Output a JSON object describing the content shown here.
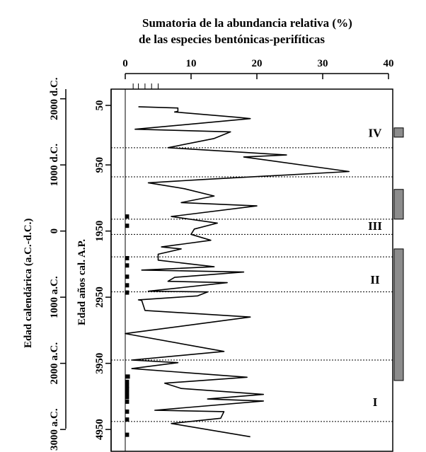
{
  "chart_data": {
    "type": "line",
    "orientation": "vertical-stratigraphic",
    "title_line1": "Sumatoria de la abundancia relativa (%)",
    "title_line2": "de las especies bentónicas-perifíticas",
    "xlim": [
      0,
      40
    ],
    "x_ticks": [
      "0",
      "10",
      "20",
      "30",
      "40"
    ],
    "y_axis_cal_bp": {
      "label": "Edad años cal. A.P.",
      "ticks": [
        "50",
        "950",
        "1950",
        "2950",
        "3950",
        "4950"
      ],
      "tick_values": [
        50,
        950,
        1950,
        2950,
        3950,
        4950
      ],
      "ylim": [
        50,
        4950
      ]
    },
    "y_axis_calendar": {
      "label": "Edad calendárica (a.C.-d.C.)",
      "ticks": [
        "2000 d.C.",
        "1000 d.C.",
        "0",
        "1000 a.C.",
        "2000 a.C.",
        "3000 a.C."
      ],
      "tick_values": [
        -50,
        950,
        1950,
        2950,
        3950,
        4950
      ]
    },
    "zones": [
      {
        "label": "IV",
        "label_age": 460
      },
      {
        "label": "III",
        "label_age": 1870
      },
      {
        "label": "II",
        "label_age": 2680
      },
      {
        "label": "I",
        "label_age": 4530
      }
    ],
    "zone_boundaries": [
      690,
      1130,
      1770,
      2000,
      2340,
      2870,
      3900,
      4830
    ],
    "series": [
      {
        "points": [
          [
            2,
            70
          ],
          [
            8,
            90
          ],
          [
            8,
            140
          ],
          [
            7.5,
            150
          ],
          [
            17,
            230
          ],
          [
            19,
            250
          ],
          [
            1.5,
            410
          ],
          [
            16,
            450
          ],
          [
            13.5,
            550
          ],
          [
            6.5,
            690
          ],
          [
            24.5,
            800
          ],
          [
            18,
            830
          ],
          [
            34,
            1050
          ],
          [
            12,
            1170
          ],
          [
            3.5,
            1220
          ],
          [
            9,
            1310
          ],
          [
            13.5,
            1420
          ],
          [
            8.5,
            1520
          ],
          [
            20,
            1570
          ],
          [
            7,
            1730
          ],
          [
            14,
            1830
          ],
          [
            10.5,
            1920
          ],
          [
            10,
            2000
          ],
          [
            13,
            2090
          ],
          [
            5.5,
            2190
          ],
          [
            8.5,
            2220
          ],
          [
            5,
            2300
          ],
          [
            5,
            2390
          ],
          [
            13.5,
            2490
          ],
          [
            2.5,
            2540
          ],
          [
            18,
            2570
          ],
          [
            7.5,
            2650
          ],
          [
            6.5,
            2710
          ],
          [
            15.5,
            2730
          ],
          [
            3.5,
            2860
          ],
          [
            12.5,
            2870
          ],
          [
            11,
            2930
          ],
          [
            2,
            2990
          ],
          [
            2.5,
            3000
          ],
          [
            3,
            3150
          ],
          [
            19,
            3250
          ],
          [
            0,
            3500
          ],
          [
            15,
            3770
          ],
          [
            1,
            3900
          ],
          [
            8,
            3940
          ],
          [
            1,
            4030
          ],
          [
            18.5,
            4160
          ],
          [
            6,
            4250
          ],
          [
            8.5,
            4330
          ],
          [
            21,
            4420
          ],
          [
            12.5,
            4490
          ],
          [
            21,
            4520
          ],
          [
            4.5,
            4660
          ],
          [
            15,
            4680
          ],
          [
            14.5,
            4780
          ],
          [
            7,
            4860
          ],
          [
            19,
            5060
          ]
        ]
      }
    ],
    "small_bars_right_axis": [
      [
        4150,
        0.6
      ],
      [
        4230,
        0.4
      ],
      [
        4290,
        0.4
      ],
      [
        4340,
        0.4
      ],
      [
        4400,
        0.4
      ],
      [
        4460,
        0.4
      ],
      [
        4530,
        0.4
      ],
      [
        4680,
        0.4
      ],
      [
        4800,
        0.4
      ],
      [
        5030,
        0.4
      ],
      [
        1730,
        0.4
      ],
      [
        1870,
        0.4
      ],
      [
        2360,
        0.4
      ],
      [
        2470,
        0.4
      ],
      [
        2640,
        0.4
      ],
      [
        2770,
        0.4
      ],
      [
        2880,
        0.4
      ]
    ],
    "right_strip": {
      "colors": {
        "fill": "#8c8c8c",
        "stroke": "#000000"
      },
      "bars": [
        {
          "from": 390,
          "to": 530
        },
        {
          "from": 1320,
          "to": 1770
        },
        {
          "from": 2220,
          "to": 4210
        }
      ]
    }
  }
}
